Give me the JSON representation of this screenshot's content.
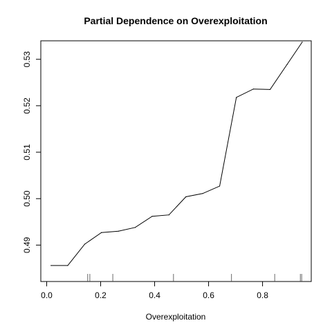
{
  "chart_data": {
    "type": "line",
    "title": "Partial Dependence on Overexploitation",
    "xlabel": "Overexploitation",
    "ylabel": "",
    "xlim": [
      0.0,
      0.96
    ],
    "ylim": [
      0.4835,
      0.5345
    ],
    "x_ticks": [
      0.0,
      0.2,
      0.4,
      0.6,
      0.8
    ],
    "x_tick_labels": [
      "0.0",
      "0.2",
      "0.4",
      "0.6",
      "0.8"
    ],
    "y_ticks": [
      0.49,
      0.5,
      0.51,
      0.52,
      0.53
    ],
    "y_tick_labels": [
      "0.49",
      "0.50",
      "0.51",
      "0.52",
      "0.53"
    ],
    "grid": false,
    "legend": "none",
    "line_color": "#000000",
    "series": [
      {
        "x": [
          0.016,
          0.078,
          0.141,
          0.203,
          0.266,
          0.328,
          0.391,
          0.453,
          0.516,
          0.578,
          0.641,
          0.703,
          0.766,
          0.828,
          0.891,
          0.947
        ],
        "values": [
          0.4856,
          0.4856,
          0.4902,
          0.4927,
          0.493,
          0.4938,
          0.4962,
          0.4965,
          0.5004,
          0.5011,
          0.5027,
          0.5218,
          0.5236,
          0.5235,
          0.5289,
          0.5337
        ]
      }
    ],
    "rug": [
      0.152,
      0.16,
      0.245,
      0.47,
      0.685,
      0.845,
      0.94,
      0.945
    ]
  }
}
